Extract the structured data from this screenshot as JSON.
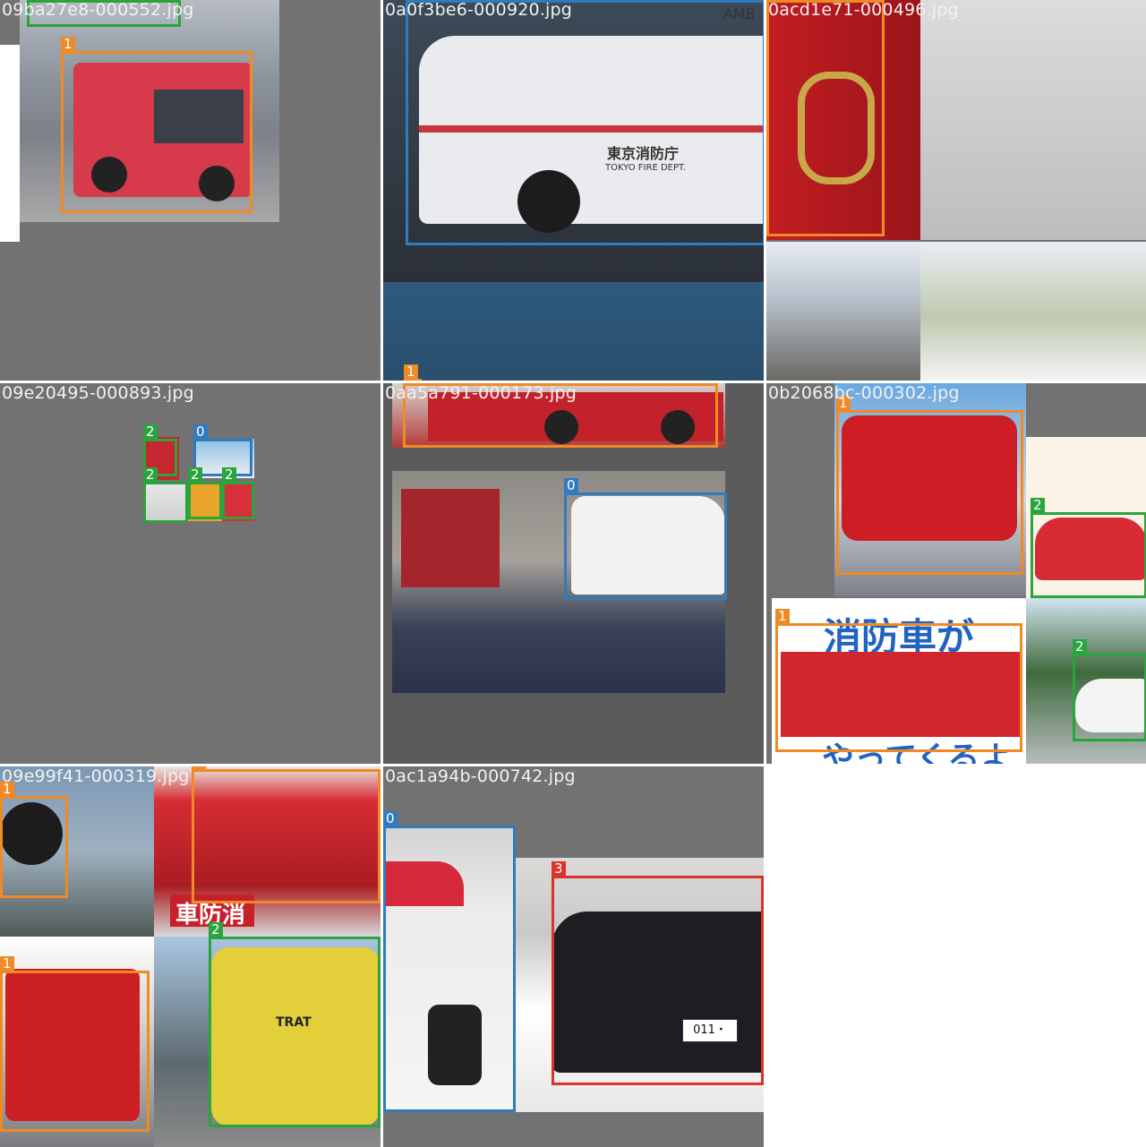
{
  "tiles": [
    {
      "name": "09ba27e8-000552.jpg"
    },
    {
      "name": "0a0f3be6-000920.jpg"
    },
    {
      "name": "0acd1e71-000496.jpg"
    },
    {
      "name": "09e20495-000893.jpg"
    },
    {
      "name": "0aa5a791-000173.jpg"
    },
    {
      "name": "0b2068bc-000302.jpg"
    },
    {
      "name": "09e99f41-000319.jpg"
    },
    {
      "name": "0ac1a94b-000742.jpg"
    }
  ],
  "labels": {
    "l0": "0",
    "l1": "1",
    "l2": "2",
    "l3": "3"
  },
  "texts": {
    "tokyo_fire_jp": "東京消防庁",
    "tokyo_fire_en": "TOKYO FIRE DEPT.",
    "amb": "AMB",
    "firetruck_jp1": "消防車が",
    "firetruck_jp2": "やってくるよ",
    "mirror_jp": "車防消",
    "tract": "TRAT",
    "plate": "011・"
  },
  "colors": {
    "class0": "#2f7bbf",
    "class1": "#f08a24",
    "class2": "#2aa43c",
    "class3": "#d9342b",
    "tile_bg": "#727272"
  }
}
